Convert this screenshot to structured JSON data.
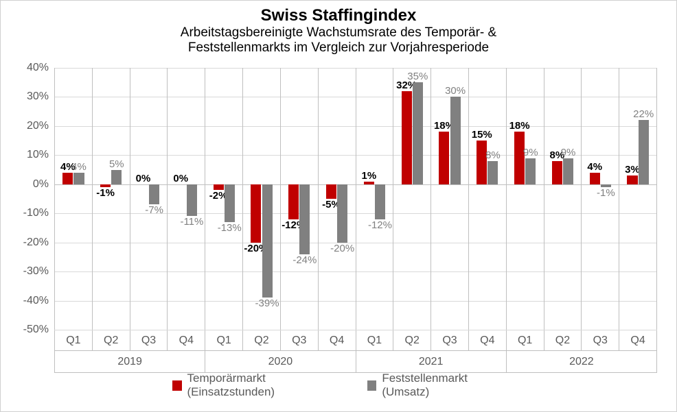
{
  "chart": {
    "type": "bar",
    "title": "Swiss Staffingindex",
    "subtitle_line1": "Arbeitstagsbereinigte Wachstumsrate des Temporär- &",
    "subtitle_line2": "Feststellenmarkts im Vergleich zur Vorjahresperiode",
    "title_fontsize": 24,
    "subtitle_fontsize": 19,
    "font_family": "Arial",
    "title_color": "#000000",
    "background_color": "#ffffff",
    "border_color": "#bfbfbf",
    "grid_color": "#d9d9d9",
    "axis_label_color": "#595959",
    "axis_label_fontsize": 16,
    "data_label_fontsize": 15,
    "ylim": [
      -50,
      40
    ],
    "ytick_step": 10,
    "y_ticks": [
      -50,
      -40,
      -30,
      -20,
      -10,
      0,
      10,
      20,
      30,
      40
    ],
    "y_tick_labels": [
      "-50%",
      "-40%",
      "-30%",
      "-20%",
      "-10%",
      "0%",
      "10%",
      "20%",
      "30%",
      "40%"
    ],
    "bar_width_ratio": 0.28,
    "bar_gap_ratio": 0.02,
    "years": [
      "2019",
      "2020",
      "2021",
      "2022"
    ],
    "quarters": [
      "Q1",
      "Q2",
      "Q3",
      "Q4"
    ],
    "series": [
      {
        "name": "Temporärmarkt (Einsatzstunden)",
        "color": "#c00000",
        "label_color": "#000000",
        "label_bold": true,
        "values": [
          4,
          -1,
          0,
          0,
          -2,
          -20,
          -12,
          -5,
          1,
          32,
          18,
          15,
          18,
          8,
          4,
          3
        ]
      },
      {
        "name": "Feststellenmarkt (Umsatz)",
        "color": "#808080",
        "label_color": "#808080",
        "label_bold": false,
        "values": [
          4,
          5,
          -7,
          -11,
          -13,
          -39,
          -24,
          -20,
          -12,
          35,
          30,
          8,
          9,
          9,
          -1,
          22
        ]
      }
    ],
    "data_labels": {
      "series0": [
        "4%",
        "-1%",
        "0%",
        "0%",
        "-2%",
        "-20%",
        "-12%",
        "-5%",
        "1%",
        "32%",
        "18%",
        "15%",
        "18%",
        "8%",
        "4%",
        "3%"
      ],
      "series1": [
        "4%",
        "5%",
        "-7%",
        "-11%",
        "-13%",
        "-39%",
        "-24%",
        "-20%",
        "-12%",
        "35%",
        "30%",
        "8%",
        "9%",
        "9%",
        "-1%",
        "22%"
      ]
    },
    "legend": {
      "series0_label": "Temporärmarkt (Einsatzstunden)",
      "series1_label": "Feststellenmarkt (Umsatz)",
      "fontsize": 17,
      "position": "bottom-center"
    }
  }
}
